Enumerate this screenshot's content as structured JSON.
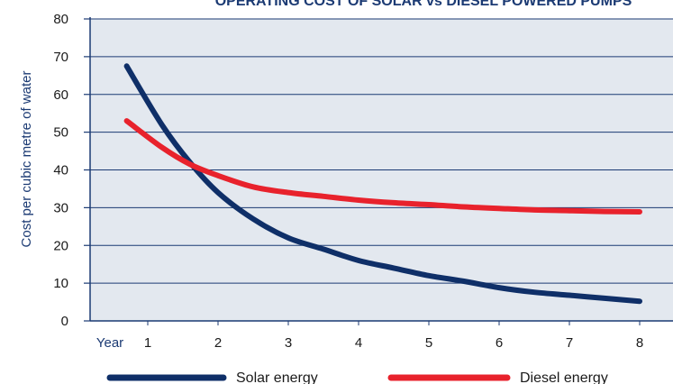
{
  "chart_data": {
    "type": "line",
    "title": "OPERATING COST OF SOLAR vs DIESEL POWERED PUMPS",
    "xlabel": "Year",
    "ylabel": "Cost per cubic metre of water",
    "x": [
      1,
      2,
      3,
      4,
      5,
      6,
      7,
      8
    ],
    "ylim": [
      0,
      80
    ],
    "yticks": [
      0,
      10,
      20,
      30,
      40,
      50,
      60,
      70,
      80
    ],
    "grid": "horizontal",
    "legend_position": "bottom",
    "series": [
      {
        "name": "Solar energy",
        "color": "#0f2f68",
        "points": [
          [
            0.7,
            67.5
          ],
          [
            1.2,
            52
          ],
          [
            1.6,
            42
          ],
          [
            2.0,
            34
          ],
          [
            2.5,
            27
          ],
          [
            3.0,
            22
          ],
          [
            3.5,
            19
          ],
          [
            4.0,
            16
          ],
          [
            4.5,
            14
          ],
          [
            5.0,
            12
          ],
          [
            5.5,
            10.5
          ],
          [
            6.0,
            8.8
          ],
          [
            6.5,
            7.6
          ],
          [
            7.0,
            6.8
          ],
          [
            7.5,
            6.0
          ],
          [
            8.0,
            5.2
          ]
        ]
      },
      {
        "name": "Diesel energy",
        "color": "#e8222c",
        "points": [
          [
            0.7,
            53
          ],
          [
            1.2,
            46
          ],
          [
            1.6,
            41.5
          ],
          [
            2.0,
            38.5
          ],
          [
            2.5,
            35.5
          ],
          [
            3.0,
            34
          ],
          [
            3.5,
            33
          ],
          [
            4.0,
            32
          ],
          [
            4.5,
            31.3
          ],
          [
            5.0,
            30.8
          ],
          [
            5.5,
            30.2
          ],
          [
            6.0,
            29.8
          ],
          [
            6.5,
            29.4
          ],
          [
            7.0,
            29.2
          ],
          [
            7.5,
            29.0
          ],
          [
            8.0,
            28.9
          ]
        ]
      }
    ]
  }
}
